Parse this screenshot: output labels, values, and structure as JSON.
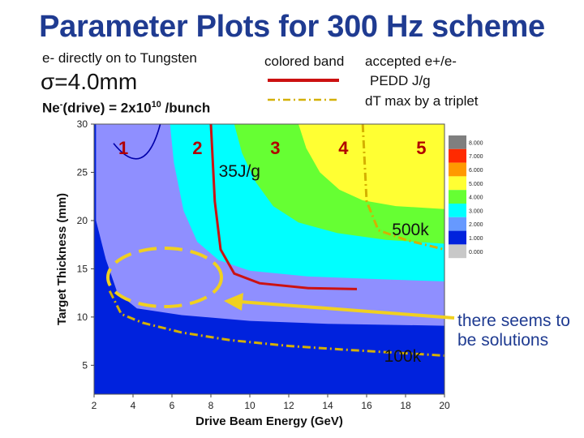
{
  "slide": {
    "title": "Parameter Plots for 300 Hz scheme",
    "target_note": "e- directly on to Tungsten",
    "sigma_note": "σ=4.0mm",
    "drive_note_prefix": "Ne",
    "drive_note_sup": "-",
    "drive_note_mid": "(drive) = 2x10",
    "drive_note_exp": "10",
    "drive_note_suffix": " /bunch",
    "legend_header": "colored band",
    "legend_accepted": "accepted e+/e-",
    "legend_pedd": "PEDD   J/g",
    "legend_dt": "dT max by a triplet",
    "callout": "there seems to be solutions"
  },
  "chart_data": {
    "type": "heatmap",
    "xlabel": "Drive Beam Energy (GeV)",
    "ylabel": "Target Thickness (mm)",
    "xlim": [
      2,
      20
    ],
    "ylim": [
      2,
      30
    ],
    "x_ticks": [
      "2",
      "4",
      "6",
      "8",
      "10",
      "12",
      "14",
      "16",
      "18",
      "20"
    ],
    "y_ticks": [
      "5",
      "10",
      "15",
      "20",
      "25",
      "30"
    ],
    "zone_labels": [
      {
        "text": "1",
        "x": 3.5,
        "y": 27.5
      },
      {
        "text": "2",
        "x": 7.3,
        "y": 27.5
      },
      {
        "text": "3",
        "x": 11.3,
        "y": 27.5
      },
      {
        "text": "4",
        "x": 14.8,
        "y": 27.5
      },
      {
        "text": "5",
        "x": 18.8,
        "y": 27.5
      }
    ],
    "annotations": [
      {
        "text": "35J/g",
        "x": 9.4,
        "y": 25.0
      },
      {
        "text": "500k",
        "x": 18.3,
        "y": 19.0
      },
      {
        "text": "100k",
        "x": 17.9,
        "y": 5.9
      }
    ],
    "pedd_35Jg_curve": [
      [
        8.0,
        30
      ],
      [
        8.2,
        22
      ],
      [
        8.5,
        17
      ],
      [
        9.2,
        14.5
      ],
      [
        10.5,
        13.5
      ],
      [
        13,
        13.0
      ],
      [
        15.5,
        12.9
      ]
    ],
    "accepted_500k_curve": [
      [
        15.8,
        30
      ],
      [
        16.0,
        22
      ],
      [
        16.6,
        19.0
      ],
      [
        18,
        18.0
      ],
      [
        20,
        17.0
      ]
    ],
    "accepted_100k_curve": [
      [
        2.8,
        12.7
      ],
      [
        3.4,
        10.3
      ],
      [
        4.5,
        9.4
      ],
      [
        6.5,
        8.4
      ],
      [
        9,
        7.6
      ],
      [
        12,
        7.0
      ],
      [
        15,
        6.6
      ],
      [
        20,
        6.0
      ]
    ],
    "colorbar": {
      "labels": [
        "8.000",
        "7.000",
        "6.000",
        "5.000",
        "4.000",
        "3.000",
        "2.000",
        "1.000",
        "0.000"
      ],
      "colors": [
        "#7f7f7f",
        "#ff2a00",
        "#ff9900",
        "#ffff33",
        "#66ff33",
        "#00ffff",
        "#6699ff",
        "#0022dd",
        "#c8c8c8"
      ]
    },
    "band_colors": {
      "level1": "#0022dd",
      "level2": "#8f8fff",
      "level3": "#00ffff",
      "level4": "#66ff33",
      "level5": "#ffff33"
    },
    "legend_colors": {
      "pedd": "#cc1111",
      "dt": "#d4b000"
    },
    "highlight_color": "#f0d020",
    "region_circle_color": "#f0d020"
  }
}
